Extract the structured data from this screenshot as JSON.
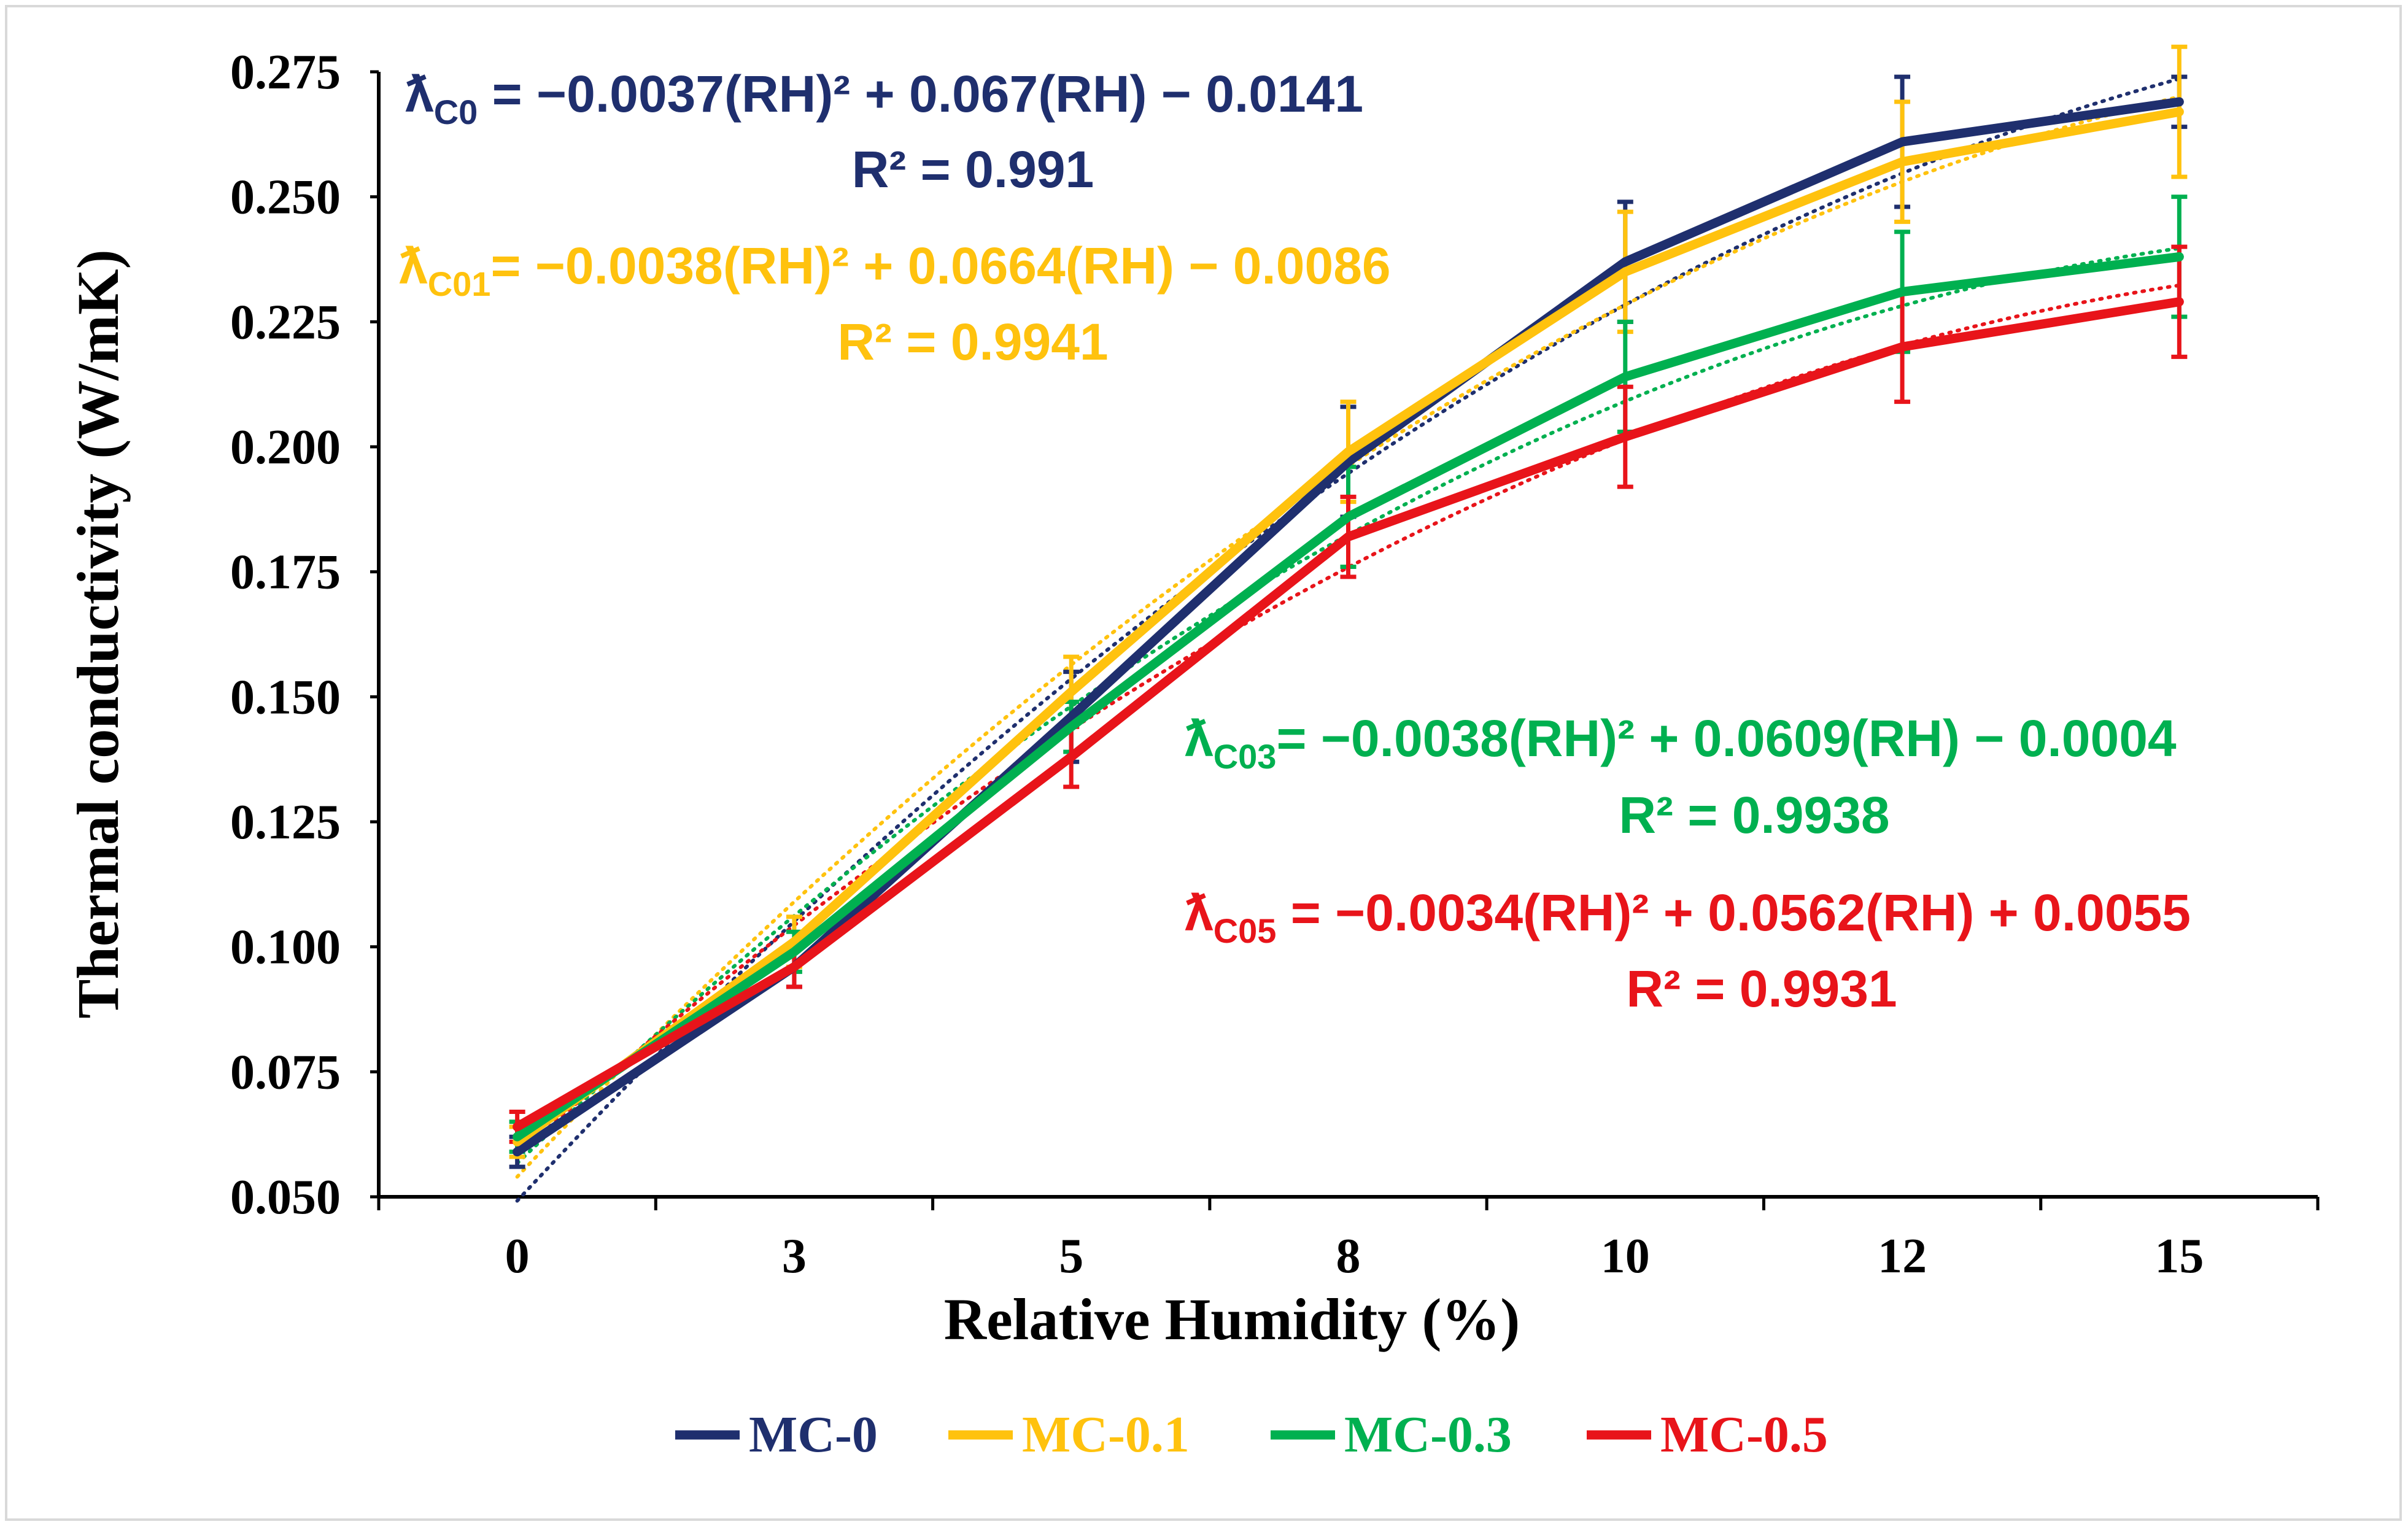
{
  "chart_data": {
    "type": "line",
    "xlabel": "Relative Humidity (%)",
    "ylabel": "Thermal conductivity (W/mK)",
    "categories": [
      "0",
      "3",
      "5",
      "8",
      "10",
      "12",
      "15"
    ],
    "rh": [
      0,
      3,
      5,
      8,
      10,
      12,
      15
    ],
    "ylim": [
      0.05,
      0.275
    ],
    "yticks": [
      0.05,
      0.075,
      0.1,
      0.125,
      0.15,
      0.175,
      0.2,
      0.225,
      0.25,
      0.275
    ],
    "ytick_labels": [
      "0.050",
      "0.075",
      "0.100",
      "0.125",
      "0.150",
      "0.175",
      "0.200",
      "0.225",
      "0.250",
      "0.275"
    ],
    "legend_position": "bottom",
    "series": [
      {
        "name": "MC-0",
        "color": "#1f2f6e",
        "values": [
          0.059,
          0.096,
          0.146,
          0.197,
          0.237,
          0.261,
          0.269
        ],
        "error": [
          0.003,
          0.004,
          0.009,
          0.011,
          0.012,
          0.013,
          0.005
        ],
        "fit": {
          "a": -0.0037,
          "b": 0.067,
          "c": -0.0141
        },
        "equation": {
          "sym": "ƛ",
          "sub": "C0",
          "text": " = −0.0037(RH)² + 0.067(RH) − 0.0141",
          "r2": "R² = 0.991"
        }
      },
      {
        "name": "MC-0.1",
        "color": "#ffc20e",
        "values": [
          0.061,
          0.101,
          0.151,
          0.199,
          0.235,
          0.257,
          0.267
        ],
        "error": [
          0.003,
          0.005,
          0.007,
          0.01,
          0.012,
          0.012,
          0.013
        ],
        "fit": {
          "a": -0.0038,
          "b": 0.0664,
          "c": -0.0086
        },
        "equation": {
          "sym": "ƛ",
          "sub": "C01",
          "text": "= −0.0038(RH)² + 0.0664(RH) − 0.0086",
          "r2": "R² = 0.9941"
        }
      },
      {
        "name": "MC-0.3",
        "color": "#00b050",
        "values": [
          0.062,
          0.099,
          0.144,
          0.186,
          0.214,
          0.231,
          0.238
        ],
        "error": [
          0.003,
          0.004,
          0.005,
          0.01,
          0.011,
          0.012,
          0.012
        ],
        "fit": {
          "a": -0.0038,
          "b": 0.0609,
          "c": -0.0004
        },
        "equation": {
          "sym": "ƛ",
          "sub": "C03",
          "text": "= −0.0038(RH)² + 0.0609(RH) − 0.0004",
          "r2": "R² = 0.9938"
        }
      },
      {
        "name": "MC-0.5",
        "color": "#e8141a",
        "values": [
          0.064,
          0.096,
          0.138,
          0.182,
          0.202,
          0.22,
          0.229
        ],
        "error": [
          0.003,
          0.004,
          0.006,
          0.008,
          0.01,
          0.011,
          0.011
        ],
        "fit": {
          "a": -0.0034,
          "b": 0.0562,
          "c": 0.0055
        },
        "equation": {
          "sym": "ƛ",
          "sub": "C05",
          "text": " = −0.0034(RH)² + 0.0562(RH) + 0.0055",
          "r2": "R² = 0.9931"
        }
      }
    ]
  }
}
